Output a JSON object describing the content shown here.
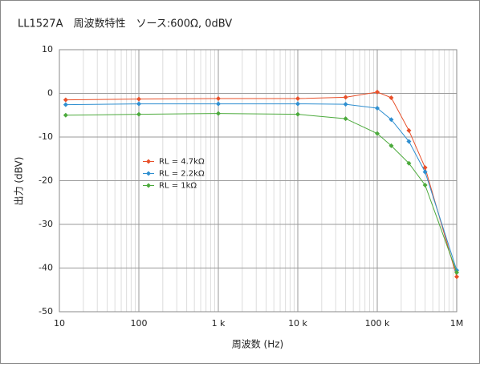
{
  "chart_data": {
    "type": "line",
    "title": "LL1527A　周波数特性　ソース:600Ω, 0dBV",
    "x_label": "周波数 (Hz)",
    "y_label": "出力 (dBV)",
    "x": [
      12,
      100,
      1000,
      10000,
      40000,
      100000,
      150000,
      250000,
      400000,
      1000000
    ],
    "series": [
      {
        "name": "RL = 4.7kΩ",
        "color": "#e8502a",
        "values": [
          -1.5,
          -1.3,
          -1.2,
          -1.2,
          -0.9,
          0.3,
          -1,
          -8.5,
          -17,
          -42
        ]
      },
      {
        "name": "RL = 2.2kΩ",
        "color": "#2f8fd0",
        "values": [
          -2.6,
          -2.4,
          -2.4,
          -2.4,
          -2.5,
          -3.4,
          -6,
          -11,
          -18,
          -40.5
        ]
      },
      {
        "name": "RL = 1kΩ",
        "color": "#4caa3c",
        "values": [
          -5,
          -4.8,
          -4.6,
          -4.8,
          -5.8,
          -9.2,
          -12,
          -16,
          -21,
          -41
        ]
      }
    ],
    "xlim": [
      10,
      1000000
    ],
    "x_log": true,
    "xticks": [
      10,
      100,
      {
        "value": 1000,
        "label": "1 k"
      },
      {
        "value": 10000,
        "label": "10 k"
      },
      {
        "value": 100000,
        "label": "100 k"
      },
      {
        "value": 1000000,
        "label": "1M"
      }
    ],
    "ylim": [
      -50,
      10
    ],
    "yticks": [
      -50,
      -40,
      -30,
      -20,
      -10,
      0,
      10
    ],
    "grid": true,
    "legend": "left-middle"
  }
}
